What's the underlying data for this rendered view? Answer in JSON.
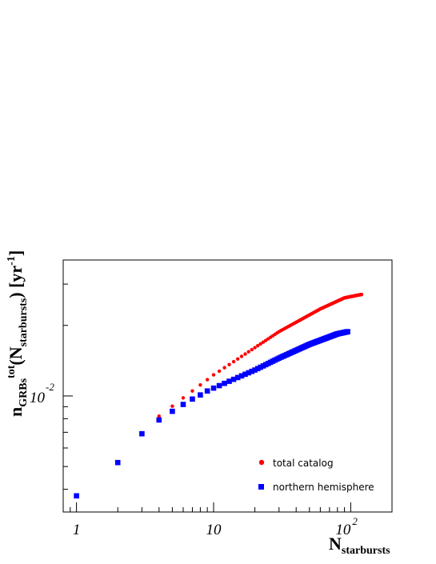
{
  "chart_data": {
    "type": "scatter",
    "title": "",
    "x_scale": "log",
    "y_scale": "log",
    "xlim": [
      0.8,
      200
    ],
    "ylim": [
      0.0032,
      0.038
    ],
    "grid": false,
    "legend_position": "bottom-right",
    "xlabel": {
      "main": "N",
      "sub": "starbursts"
    },
    "ylabel": {
      "n": "n",
      "n_sub": "GRBs",
      "tot": "tot",
      "open": "(N",
      "open_sub": "starbursts",
      "close": ") [yr",
      "exp": "-1",
      "end": "]"
    },
    "x_ticks": [
      {
        "value": 1,
        "base": "1",
        "exp": ""
      },
      {
        "value": 10,
        "base": "10",
        "exp": ""
      },
      {
        "value": 100,
        "base": "10",
        "exp": "2"
      }
    ],
    "y_ticks": [
      {
        "value": 0.01,
        "base": "10",
        "exp": "-2"
      }
    ],
    "series": [
      {
        "name": "total catalog",
        "marker": "circle",
        "color": "#ff0000",
        "n_start": 4,
        "n_end": 120,
        "points": [
          [
            4,
            0.0082
          ],
          [
            10,
            0.0123
          ],
          [
            30,
            0.0188
          ],
          [
            60,
            0.0235
          ],
          [
            90,
            0.0262
          ],
          [
            120,
            0.0271
          ]
        ]
      },
      {
        "name": "northern hemisphere",
        "marker": "square",
        "color": "#0000ff",
        "n_start": 1,
        "n_end": 95,
        "points": [
          [
            1,
            0.00375
          ],
          [
            2,
            0.0052
          ],
          [
            3,
            0.0069
          ],
          [
            4,
            0.0079
          ],
          [
            5,
            0.0086
          ],
          [
            6,
            0.0092
          ],
          [
            7,
            0.0097
          ],
          [
            8,
            0.0101
          ],
          [
            9,
            0.0105
          ],
          [
            10,
            0.0108
          ],
          [
            20,
            0.0129
          ],
          [
            30,
            0.0145
          ],
          [
            50,
            0.0166
          ],
          [
            80,
            0.0184
          ],
          [
            95,
            0.0188
          ]
        ]
      }
    ]
  }
}
